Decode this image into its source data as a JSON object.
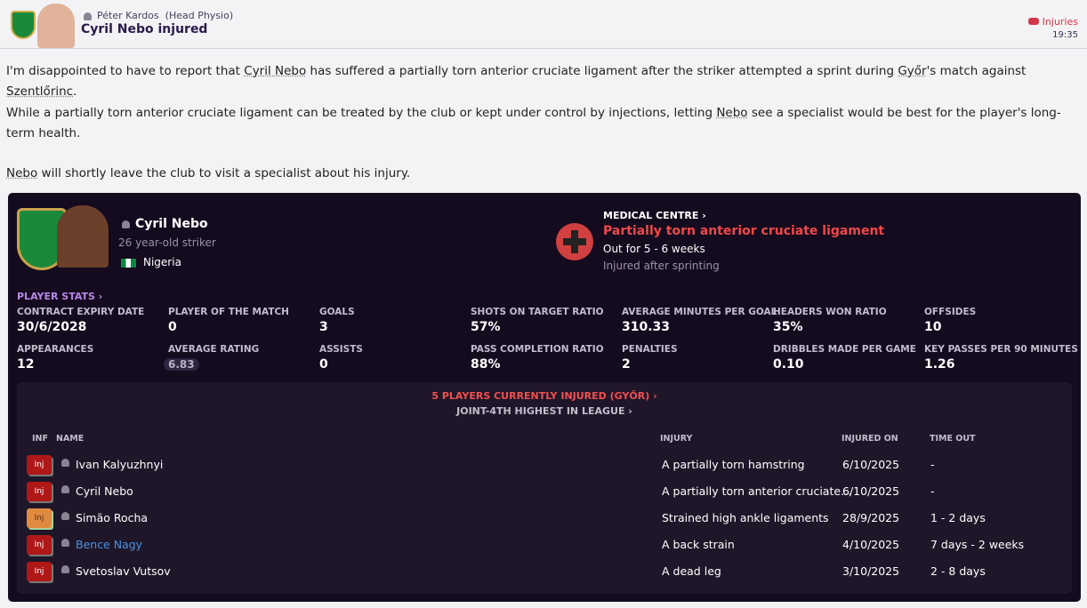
{
  "header": {
    "sender": "Péter Kardos",
    "role": "(Head Physio)",
    "title": "Cyril Nebo injured",
    "category": "Injuries",
    "time": "19:35"
  },
  "body": {
    "p1": [
      "I'm disappointed to have to report that ",
      "Cyril Nebo",
      " has suffered a partially torn anterior cruciate ligament after the striker attempted a sprint during ",
      "Győr",
      "'s match against ",
      "Szentlőrinc",
      "."
    ],
    "p2": [
      "While a partially torn anterior cruciate ligament can be treated by the club or kept under control by injections, letting ",
      "Nebo",
      " see a specialist would be best for the player's long-term health."
    ],
    "p3": [
      "Nebo",
      " will shortly leave the club to visit a specialist about his injury."
    ]
  },
  "player": {
    "name": "Cyril Nebo",
    "desc": "26 year-old striker",
    "nationality": "Nigeria"
  },
  "medical": {
    "link": "MEDICAL CENTRE ›",
    "injury": "Partially torn anterior cruciate ligament",
    "out": "Out for 5 - 6 weeks",
    "cause": "Injured after sprinting"
  },
  "stats": {
    "link": "PLAYER STATS ›",
    "items": [
      {
        "label": "CONTRACT EXPIRY DATE",
        "value": "30/6/2028"
      },
      {
        "label": "PLAYER OF THE MATCH",
        "value": "0"
      },
      {
        "label": "GOALS",
        "value": "3"
      },
      {
        "label": "SHOTS ON TARGET RATIO",
        "value": "57%"
      },
      {
        "label": "AVERAGE MINUTES PER GOAL",
        "value": "310.33"
      },
      {
        "label": "HEADERS WON RATIO",
        "value": "35%"
      },
      {
        "label": "OFFSIDES",
        "value": "10"
      },
      {
        "label": "APPEARANCES",
        "value": "12"
      },
      {
        "label": "AVERAGE RATING",
        "value": "6.83"
      },
      {
        "label": "ASSISTS",
        "value": "0"
      },
      {
        "label": "PASS COMPLETION RATIO",
        "value": "88%"
      },
      {
        "label": "PENALTIES",
        "value": "2"
      },
      {
        "label": "DRIBBLES MADE PER GAME",
        "value": "0.10"
      },
      {
        "label": "KEY PASSES PER 90 MINUTES",
        "value": "1.26"
      }
    ]
  },
  "injured": {
    "headline": "5 PLAYERS CURRENTLY INJURED (GYŐR) ›",
    "subline": "JOINT-4TH HIGHEST IN LEAGUE ›",
    "columns": [
      "INF",
      "NAME",
      "INJURY",
      "INJURED ON",
      "TIME OUT"
    ],
    "rows": [
      {
        "inf": "Inj",
        "name": "Ivan Kalyuzhnyi",
        "injury": "A partially torn hamstring",
        "on": "6/10/2025",
        "out": "-"
      },
      {
        "inf": "Inj",
        "name": "Cyril Nebo",
        "injury": "A partially torn anterior cruciate…",
        "on": "6/10/2025",
        "out": "-"
      },
      {
        "inf": "Inj",
        "name": "Simão Rocha",
        "injury": "Strained high ankle ligaments",
        "on": "28/9/2025",
        "out": "1 - 2 days"
      },
      {
        "inf": "Inj",
        "name": "Bence Nagy",
        "injury": "A back strain",
        "on": "4/10/2025",
        "out": "7 days - 2 weeks"
      },
      {
        "inf": "Inj",
        "name": "Svetoslav Vutsov",
        "injury": "A dead leg",
        "on": "3/10/2025",
        "out": "2 - 8 days"
      }
    ]
  },
  "colors": {
    "accent_red": "#f05050",
    "panel": "#150b1f",
    "link_purple": "#b888e8",
    "highlight_blue": "#4a90e0"
  }
}
